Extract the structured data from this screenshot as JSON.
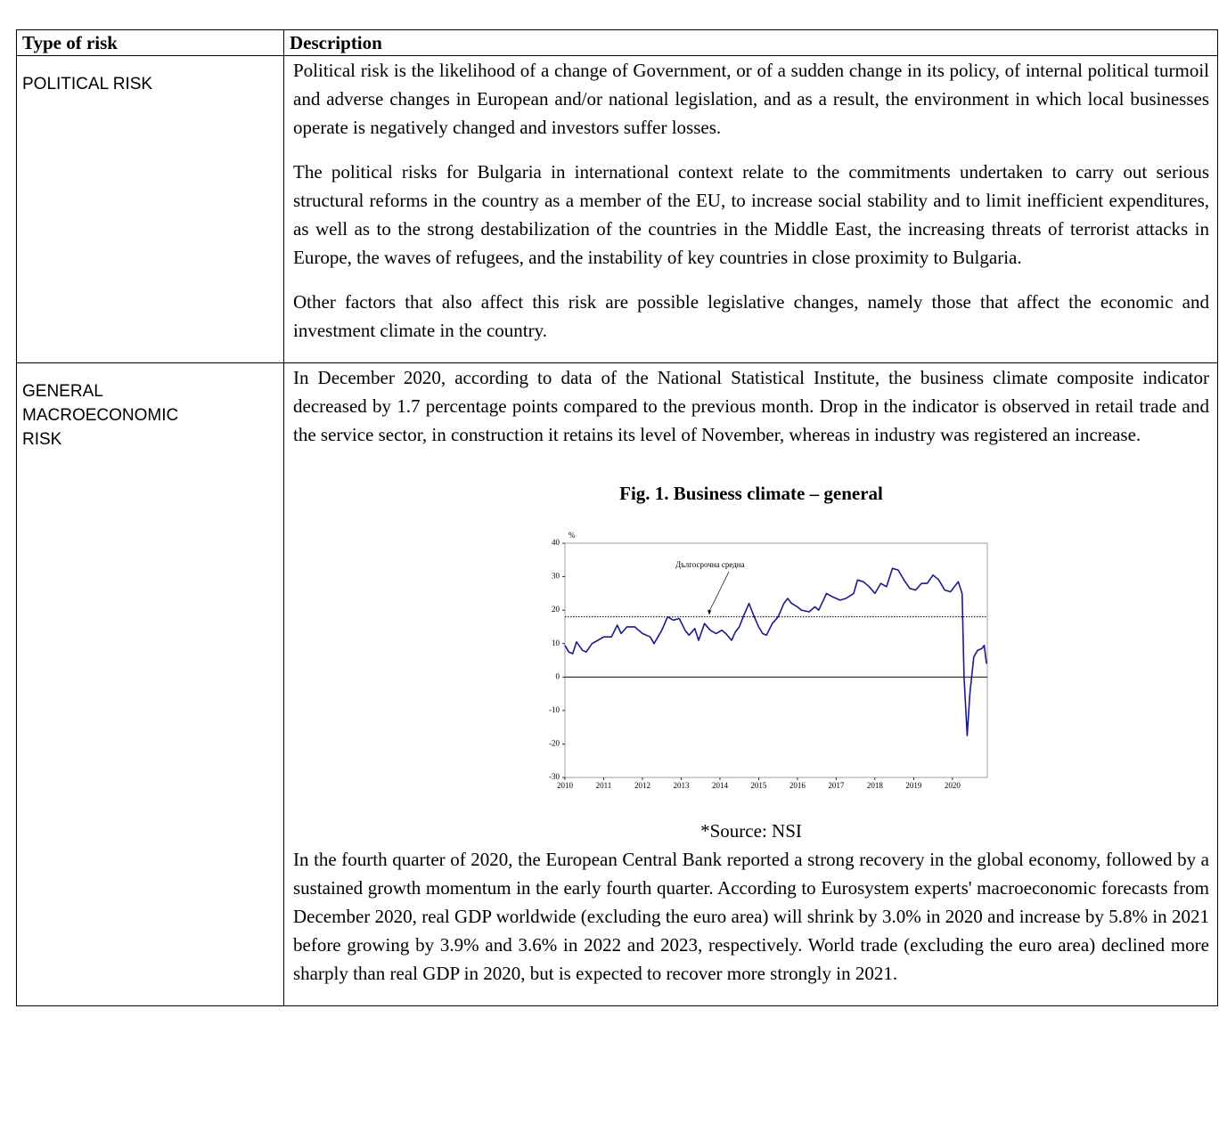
{
  "table": {
    "headers": [
      "Type of risk",
      "Description"
    ],
    "rows": [
      {
        "label": "POLITICAL RISK",
        "paragraphs": [
          "Political risk is the likelihood of a change of Government, or of a sudden change in its policy, of internal political turmoil and adverse changes in European and/or national legislation, and as a result, the environment in which local businesses operate is negatively changed and investors suffer losses.",
          "The political risks for Bulgaria in international context relate to the commitments undertaken to carry out serious structural reforms in the country as a member of the EU, to increase social stability and to limit inefficient expenditures, as well as to the strong destabilization of the countries in the Middle East, the increasing threats of terrorist attacks in Europe, the waves of refugees, and the instability of key countries in close proximity to Bulgaria.",
          "Other factors that also affect this risk are possible legislative changes, namely those that affect the economic and investment climate in the country."
        ]
      },
      {
        "label": "GENERAL MACROECONOMIC RISK",
        "paragraphs": [
          "In December 2020, according to data of the National Statistical Institute, the business climate composite indicator decreased by 1.7 percentage points compared to the previous month. Drop in the indicator is observed in retail trade and the service sector, in construction it retains its level of November, whereas in industry was registered an increase."
        ],
        "figure_title": "Fig. 1. Business climate – general",
        "source": "*Source: NSI",
        "paragraphs_after": [
          "In the fourth quarter of 2020, the European Central Bank reported a strong recovery in the global economy, followed by a sustained growth momentum in the early fourth quarter. According to Eurosystem experts' macroeconomic forecasts from December 2020, real GDP worldwide (excluding the euro area) will shrink by 3.0% in 2020 and increase by 5.8% in 2021 before growing by 3.9% and 3.6% in 2022 and 2023, respectively. World trade (excluding the euro area) declined more sharply than real GDP in 2020, but is expected to recover more strongly in 2021."
        ]
      }
    ]
  },
  "chart_data": {
    "type": "line",
    "y_label": "%",
    "color": "#1a1a8c",
    "annotation": "Дългосрочна средна",
    "average": 18,
    "x": [
      2010.0,
      2010.1,
      2010.2,
      2010.3,
      2010.45,
      2010.55,
      2010.7,
      2010.85,
      2011.0,
      2011.2,
      2011.35,
      2011.45,
      2011.6,
      2011.8,
      2012.0,
      2012.2,
      2012.3,
      2012.5,
      2012.65,
      2012.8,
      2012.95,
      2013.1,
      2013.2,
      2013.35,
      2013.45,
      2013.6,
      2013.75,
      2013.9,
      2014.05,
      2014.15,
      2014.3,
      2014.4,
      2014.5,
      2014.6,
      2014.75,
      2014.85,
      2015.0,
      2015.1,
      2015.2,
      2015.35,
      2015.5,
      2015.65,
      2015.75,
      2015.85,
      2016.0,
      2016.1,
      2016.3,
      2016.45,
      2016.55,
      2016.75,
      2016.9,
      2017.1,
      2017.25,
      2017.45,
      2017.55,
      2017.7,
      2017.85,
      2018.0,
      2018.15,
      2018.3,
      2018.45,
      2018.6,
      2018.75,
      2018.9,
      2019.05,
      2019.2,
      2019.35,
      2019.5,
      2019.65,
      2019.8,
      2019.95,
      2020.05,
      2020.15,
      2020.25,
      2020.3,
      2020.38,
      2020.45,
      2020.55,
      2020.65,
      2020.76,
      2020.82,
      2020.88
    ],
    "values": [
      9.5,
      7.5,
      7,
      10.5,
      8,
      7.5,
      10,
      11,
      12,
      12,
      15.5,
      13,
      15,
      15,
      13,
      12,
      10,
      14,
      18,
      17,
      17.5,
      14,
      12.5,
      14.5,
      11,
      16,
      14,
      13,
      14,
      13,
      11,
      13.5,
      15,
      18,
      22,
      19,
      15,
      13,
      12.5,
      16,
      18,
      22,
      23.5,
      22,
      21,
      20,
      19.5,
      21,
      20,
      25,
      24,
      23,
      23.5,
      25,
      29,
      28.5,
      27,
      25,
      28,
      27,
      32.5,
      32,
      29,
      26.5,
      26,
      28,
      28,
      30.5,
      29,
      26,
      25.5,
      27,
      28.5,
      25,
      0,
      -17.5,
      -5,
      6,
      8,
      8.5,
      9.5,
      4
    ],
    "xlim": [
      2010,
      2020.9
    ],
    "ylim": [
      -30,
      40
    ],
    "xticks": [
      2010,
      2011,
      2012,
      2013,
      2014,
      2015,
      2016,
      2017,
      2018,
      2019,
      2020
    ],
    "yticks": [
      -30,
      -20,
      -10,
      0,
      10,
      20,
      30,
      40
    ]
  }
}
